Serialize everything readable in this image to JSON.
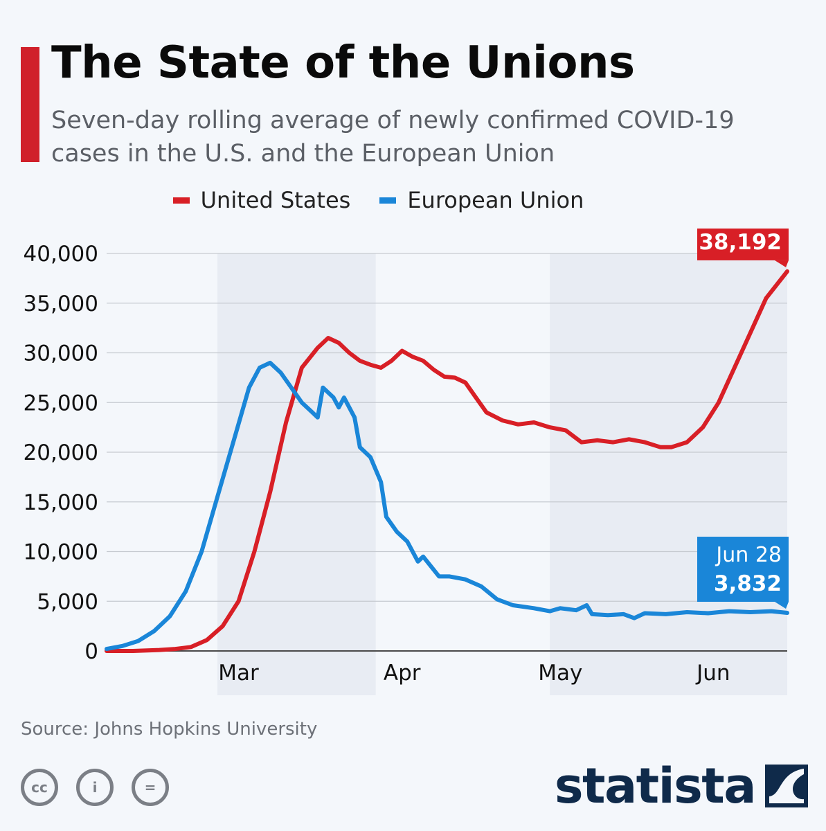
{
  "header": {
    "title": "The State of the Unions",
    "subtitle": "Seven-day rolling average of newly confirmed COVID-19 cases in the U.S. and the European Union"
  },
  "colors": {
    "accent": "#d0202a",
    "us": "#d81f26",
    "eu": "#1a86d8",
    "grid": "#c6cad0",
    "shade": "#e8ecf3",
    "text": "#111111",
    "brand": "#0f2a4a"
  },
  "legend": {
    "items": [
      {
        "label": "United States",
        "color": "#d81f26"
      },
      {
        "label": "European Union",
        "color": "#1a86d8"
      }
    ]
  },
  "chart_data": {
    "type": "line",
    "title": "The State of the Unions",
    "subtitle": "Seven-day rolling average of newly confirmed COVID-19 cases in the U.S. and the European Union",
    "xlabel": "",
    "ylabel": "",
    "x_range": [
      "2020-02-20",
      "2020-06-28"
    ],
    "ylim": [
      0,
      40000
    ],
    "yticks": [
      0,
      5000,
      10000,
      15000,
      20000,
      25000,
      30000,
      35000,
      40000
    ],
    "ytick_labels": [
      "0",
      "5,000",
      "10,000",
      "15,000",
      "20,000",
      "25,000",
      "30,000",
      "35,000",
      "40,000"
    ],
    "month_labels": [
      {
        "label": "Mar",
        "date": "2020-03-01"
      },
      {
        "label": "Apr",
        "date": "2020-04-01"
      },
      {
        "label": "May",
        "date": "2020-05-01"
      },
      {
        "label": "Jun",
        "date": "2020-06-01"
      }
    ],
    "shaded_months": [
      [
        "2020-03-12",
        "2020-04-11"
      ],
      [
        "2020-05-14",
        "2020-06-28"
      ]
    ],
    "grid": true,
    "legend_position": "top",
    "series": [
      {
        "name": "United States",
        "color": "#d81f26",
        "points": [
          [
            "2020-02-20",
            0
          ],
          [
            "2020-02-25",
            0
          ],
          [
            "2020-03-01",
            100
          ],
          [
            "2020-03-04",
            200
          ],
          [
            "2020-03-07",
            400
          ],
          [
            "2020-03-10",
            1100
          ],
          [
            "2020-03-13",
            2500
          ],
          [
            "2020-03-16",
            5000
          ],
          [
            "2020-03-19",
            10000
          ],
          [
            "2020-03-22",
            16000
          ],
          [
            "2020-03-25",
            23000
          ],
          [
            "2020-03-28",
            28500
          ],
          [
            "2020-03-31",
            30500
          ],
          [
            "2020-04-02",
            31500
          ],
          [
            "2020-04-04",
            31000
          ],
          [
            "2020-04-06",
            30000
          ],
          [
            "2020-04-08",
            29200
          ],
          [
            "2020-04-10",
            28800
          ],
          [
            "2020-04-12",
            28500
          ],
          [
            "2020-04-14",
            29200
          ],
          [
            "2020-04-16",
            30200
          ],
          [
            "2020-04-18",
            29600
          ],
          [
            "2020-04-20",
            29200
          ],
          [
            "2020-04-22",
            28300
          ],
          [
            "2020-04-24",
            27600
          ],
          [
            "2020-04-26",
            27500
          ],
          [
            "2020-04-28",
            27000
          ],
          [
            "2020-04-30",
            25500
          ],
          [
            "2020-05-02",
            24000
          ],
          [
            "2020-05-05",
            23200
          ],
          [
            "2020-05-08",
            22800
          ],
          [
            "2020-05-11",
            23000
          ],
          [
            "2020-05-14",
            22500
          ],
          [
            "2020-05-17",
            22200
          ],
          [
            "2020-05-20",
            21000
          ],
          [
            "2020-05-23",
            21200
          ],
          [
            "2020-05-26",
            21000
          ],
          [
            "2020-05-29",
            21300
          ],
          [
            "2020-06-01",
            21000
          ],
          [
            "2020-06-04",
            20500
          ],
          [
            "2020-06-06",
            20500
          ],
          [
            "2020-06-09",
            21000
          ],
          [
            "2020-06-12",
            22500
          ],
          [
            "2020-06-15",
            25000
          ],
          [
            "2020-06-18",
            28500
          ],
          [
            "2020-06-21",
            32000
          ],
          [
            "2020-06-24",
            35500
          ],
          [
            "2020-06-28",
            38192
          ]
        ]
      },
      {
        "name": "European Union",
        "color": "#1a86d8",
        "points": [
          [
            "2020-02-20",
            200
          ],
          [
            "2020-02-23",
            500
          ],
          [
            "2020-02-26",
            1000
          ],
          [
            "2020-02-29",
            2000
          ],
          [
            "2020-03-03",
            3500
          ],
          [
            "2020-03-06",
            6000
          ],
          [
            "2020-03-09",
            10000
          ],
          [
            "2020-03-12",
            15500
          ],
          [
            "2020-03-15",
            21000
          ],
          [
            "2020-03-18",
            26500
          ],
          [
            "2020-03-20",
            28500
          ],
          [
            "2020-03-22",
            29000
          ],
          [
            "2020-03-24",
            28000
          ],
          [
            "2020-03-26",
            26500
          ],
          [
            "2020-03-28",
            25000
          ],
          [
            "2020-03-30",
            24000
          ],
          [
            "2020-03-31",
            23500
          ],
          [
            "2020-04-01",
            26500
          ],
          [
            "2020-04-03",
            25500
          ],
          [
            "2020-04-04",
            24500
          ],
          [
            "2020-04-05",
            25500
          ],
          [
            "2020-04-07",
            23500
          ],
          [
            "2020-04-08",
            20500
          ],
          [
            "2020-04-10",
            19500
          ],
          [
            "2020-04-12",
            17000
          ],
          [
            "2020-04-13",
            13500
          ],
          [
            "2020-04-15",
            12000
          ],
          [
            "2020-04-17",
            11000
          ],
          [
            "2020-04-19",
            9000
          ],
          [
            "2020-04-20",
            9500
          ],
          [
            "2020-04-23",
            7500
          ],
          [
            "2020-04-25",
            7500
          ],
          [
            "2020-04-28",
            7200
          ],
          [
            "2020-05-01",
            6500
          ],
          [
            "2020-05-04",
            5200
          ],
          [
            "2020-05-07",
            4600
          ],
          [
            "2020-05-11",
            4300
          ],
          [
            "2020-05-14",
            4000
          ],
          [
            "2020-05-16",
            4300
          ],
          [
            "2020-05-19",
            4100
          ],
          [
            "2020-05-21",
            4600
          ],
          [
            "2020-05-22",
            3700
          ],
          [
            "2020-05-25",
            3600
          ],
          [
            "2020-05-28",
            3700
          ],
          [
            "2020-05-30",
            3300
          ],
          [
            "2020-06-01",
            3800
          ],
          [
            "2020-06-05",
            3700
          ],
          [
            "2020-06-09",
            3900
          ],
          [
            "2020-06-13",
            3800
          ],
          [
            "2020-06-17",
            4000
          ],
          [
            "2020-06-21",
            3900
          ],
          [
            "2020-06-25",
            4000
          ],
          [
            "2020-06-28",
            3832
          ]
        ]
      }
    ],
    "annotations": [
      {
        "series": "United States",
        "date_label": "Jun 28",
        "value_label": "38,192"
      },
      {
        "series": "European Union",
        "date_label": "Jun 28",
        "value_label": "3,832"
      }
    ]
  },
  "footer": {
    "source": "Source: Johns Hopkins University",
    "license_icons": [
      {
        "name": "cc-icon",
        "glyph": "cc"
      },
      {
        "name": "by-icon",
        "glyph": "i"
      },
      {
        "name": "nd-icon",
        "glyph": "="
      }
    ],
    "brand": "statista"
  }
}
